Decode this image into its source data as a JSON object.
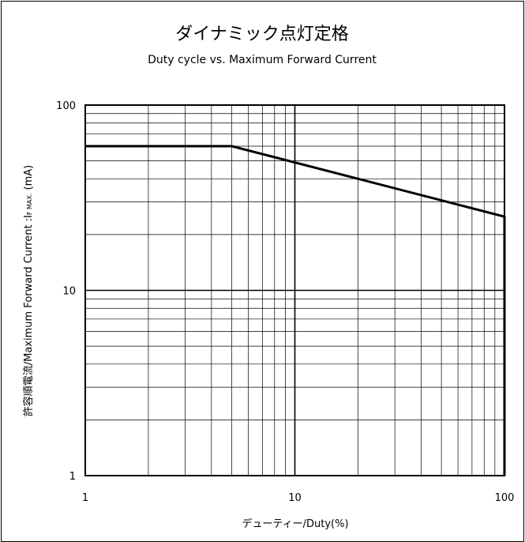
{
  "chart_data": {
    "type": "line",
    "title": "ダイナミック点灯定格",
    "subtitle": "Duty cycle vs. Maximum Forward Current",
    "xlabel": "デューティー/Duty(%)",
    "ylabel": {
      "main": "許容順電流/Maximum Forward Current :I",
      "sub": "F MAX.",
      "unit": " (mA)"
    },
    "x_scale": "log",
    "y_scale": "log",
    "xlim": [
      1,
      100
    ],
    "ylim": [
      1,
      100
    ],
    "x_ticks": [
      "1",
      "10",
      "100"
    ],
    "y_ticks": [
      "1",
      "10",
      "100"
    ],
    "grid": true,
    "series": [
      {
        "x": [
          1,
          5,
          100,
          100
        ],
        "y": [
          60,
          60,
          25,
          1
        ]
      }
    ]
  }
}
